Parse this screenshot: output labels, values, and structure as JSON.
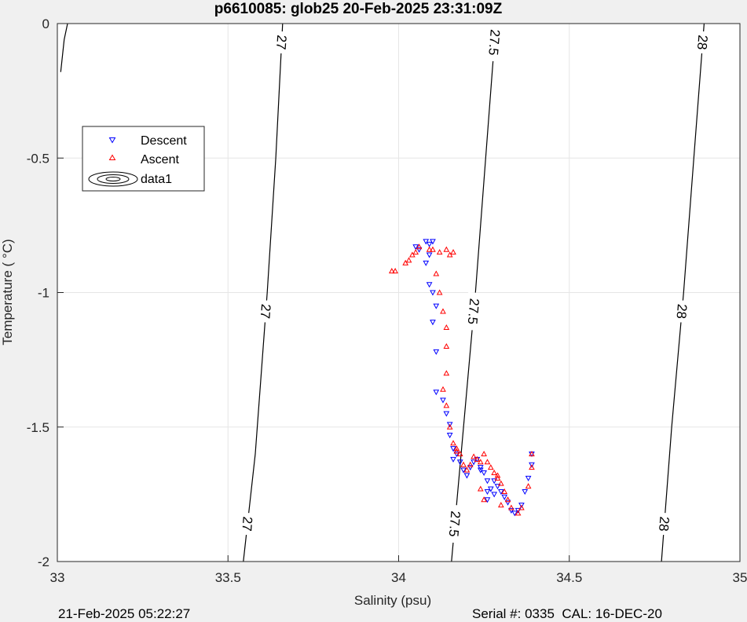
{
  "chart_data": {
    "type": "scatter",
    "title": "p6610085: glob25 20-Feb-2025 23:31:09Z",
    "xlabel": "Salinity (psu)",
    "ylabel": "Temperature (   °C)",
    "xlim": [
      33,
      35
    ],
    "ylim": [
      -2,
      0
    ],
    "xticks": [
      "33",
      "33.5",
      "34",
      "34.5",
      "35"
    ],
    "yticks": [
      "0",
      "-0.5",
      "-1",
      "-1.5",
      "-2"
    ],
    "grid": true,
    "legend": {
      "placement": "top-left",
      "entries": [
        "Descent",
        "Ascent",
        "data1"
      ]
    },
    "contours": [
      {
        "label": "27",
        "points": [
          [
            33.01,
            -0.18
          ],
          [
            33.02,
            -0.06
          ],
          [
            33.03,
            0
          ]
        ]
      },
      {
        "label": "27",
        "points": [
          [
            33.545,
            -2
          ],
          [
            33.58,
            -1.6
          ],
          [
            33.615,
            -1.0
          ],
          [
            33.64,
            -0.5
          ],
          [
            33.66,
            0
          ]
        ]
      },
      {
        "label": "27.5",
        "points": [
          [
            34.155,
            -2
          ],
          [
            34.19,
            -1.5
          ],
          [
            34.225,
            -1.0
          ],
          [
            34.255,
            -0.5
          ],
          [
            34.285,
            0
          ]
        ]
      },
      {
        "label": "28",
        "points": [
          [
            34.77,
            -2
          ],
          [
            34.8,
            -1.5
          ],
          [
            34.835,
            -1.0
          ],
          [
            34.865,
            -0.5
          ],
          [
            34.895,
            0
          ]
        ]
      }
    ],
    "series": [
      {
        "name": "Descent",
        "color": "#0000ff",
        "marker": "triangle-down",
        "points": [
          [
            34.05,
            -0.83
          ],
          [
            34.06,
            -0.84
          ],
          [
            34.08,
            -0.81
          ],
          [
            34.09,
            -0.82
          ],
          [
            34.1,
            -0.81
          ],
          [
            34.09,
            -0.86
          ],
          [
            34.08,
            -0.89
          ],
          [
            34.09,
            -0.97
          ],
          [
            34.1,
            -1.0
          ],
          [
            34.11,
            -1.05
          ],
          [
            34.1,
            -1.11
          ],
          [
            34.11,
            -1.22
          ],
          [
            34.11,
            -1.37
          ],
          [
            34.13,
            -1.4
          ],
          [
            34.14,
            -1.45
          ],
          [
            34.15,
            -1.49
          ],
          [
            34.15,
            -1.53
          ],
          [
            34.16,
            -1.58
          ],
          [
            34.16,
            -1.62
          ],
          [
            34.17,
            -1.6
          ],
          [
            34.18,
            -1.63
          ],
          [
            34.19,
            -1.66
          ],
          [
            34.2,
            -1.68
          ],
          [
            34.21,
            -1.65
          ],
          [
            34.22,
            -1.63
          ],
          [
            34.23,
            -1.62
          ],
          [
            34.24,
            -1.65
          ],
          [
            34.25,
            -1.67
          ],
          [
            34.26,
            -1.7
          ],
          [
            34.27,
            -1.73
          ],
          [
            34.26,
            -1.77
          ],
          [
            34.28,
            -1.75
          ],
          [
            34.29,
            -1.72
          ],
          [
            34.3,
            -1.74
          ],
          [
            34.31,
            -1.76
          ],
          [
            34.32,
            -1.78
          ],
          [
            34.33,
            -1.81
          ],
          [
            34.34,
            -1.82
          ],
          [
            34.35,
            -1.81
          ],
          [
            34.36,
            -1.79
          ],
          [
            34.37,
            -1.74
          ],
          [
            34.38,
            -1.69
          ],
          [
            34.39,
            -1.64
          ],
          [
            34.39,
            -1.6
          ],
          [
            34.26,
            -1.74
          ],
          [
            34.24,
            -1.66
          ],
          [
            34.28,
            -1.7
          ]
        ]
      },
      {
        "name": "Ascent",
        "color": "#ff0000",
        "marker": "triangle-up",
        "points": [
          [
            33.98,
            -0.92
          ],
          [
            33.99,
            -0.92
          ],
          [
            34.02,
            -0.89
          ],
          [
            34.03,
            -0.88
          ],
          [
            34.04,
            -0.86
          ],
          [
            34.05,
            -0.85
          ],
          [
            34.06,
            -0.83
          ],
          [
            34.09,
            -0.84
          ],
          [
            34.1,
            -0.84
          ],
          [
            34.12,
            -0.85
          ],
          [
            34.14,
            -0.84
          ],
          [
            34.15,
            -0.86
          ],
          [
            34.16,
            -0.85
          ],
          [
            34.11,
            -0.93
          ],
          [
            34.12,
            -1.0
          ],
          [
            34.13,
            -1.07
          ],
          [
            34.14,
            -1.13
          ],
          [
            34.14,
            -1.2
          ],
          [
            34.14,
            -1.3
          ],
          [
            34.13,
            -1.36
          ],
          [
            34.14,
            -1.42
          ],
          [
            34.15,
            -1.5
          ],
          [
            34.16,
            -1.56
          ],
          [
            34.17,
            -1.59
          ],
          [
            34.18,
            -1.6
          ],
          [
            34.19,
            -1.64
          ],
          [
            34.2,
            -1.66
          ],
          [
            34.21,
            -1.64
          ],
          [
            34.22,
            -1.61
          ],
          [
            34.23,
            -1.62
          ],
          [
            34.24,
            -1.63
          ],
          [
            34.25,
            -1.6
          ],
          [
            34.26,
            -1.63
          ],
          [
            34.27,
            -1.65
          ],
          [
            34.28,
            -1.67
          ],
          [
            34.29,
            -1.69
          ],
          [
            34.3,
            -1.71
          ],
          [
            34.31,
            -1.74
          ],
          [
            34.32,
            -1.77
          ],
          [
            34.33,
            -1.8
          ],
          [
            34.35,
            -1.82
          ],
          [
            34.36,
            -1.8
          ],
          [
            34.38,
            -1.72
          ],
          [
            34.39,
            -1.65
          ],
          [
            34.39,
            -1.6
          ],
          [
            34.25,
            -1.77
          ],
          [
            34.24,
            -1.73
          ],
          [
            34.29,
            -1.68
          ],
          [
            34.3,
            -1.79
          ],
          [
            34.17,
            -1.58
          ]
        ]
      }
    ]
  },
  "footer": {
    "timestamp": "21-Feb-2025 05:22:27",
    "serial": "Serial #: 0335  CAL: 16-DEC-20"
  }
}
